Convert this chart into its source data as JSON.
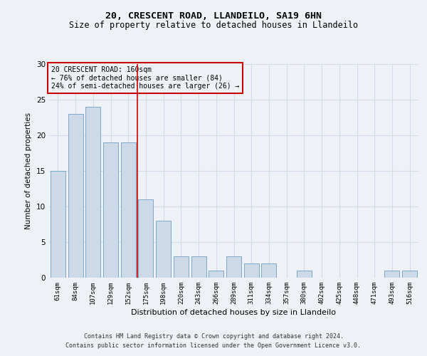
{
  "title1": "20, CRESCENT ROAD, LLANDEILO, SA19 6HN",
  "title2": "Size of property relative to detached houses in Llandeilo",
  "xlabel": "Distribution of detached houses by size in Llandeilo",
  "ylabel": "Number of detached properties",
  "categories": [
    "61sqm",
    "84sqm",
    "107sqm",
    "129sqm",
    "152sqm",
    "175sqm",
    "198sqm",
    "220sqm",
    "243sqm",
    "266sqm",
    "289sqm",
    "311sqm",
    "334sqm",
    "357sqm",
    "380sqm",
    "402sqm",
    "425sqm",
    "448sqm",
    "471sqm",
    "493sqm",
    "516sqm"
  ],
  "values": [
    15,
    23,
    24,
    19,
    19,
    11,
    8,
    3,
    3,
    1,
    3,
    2,
    2,
    0,
    1,
    0,
    0,
    0,
    0,
    1,
    1
  ],
  "bar_color": "#ccd9e8",
  "bar_edge_color": "#7aaac8",
  "grid_color": "#d0dde8",
  "annotation_box_color": "#cc0000",
  "vline_color": "#cc0000",
  "annotation_text": "20 CRESCENT ROAD: 160sqm\n← 76% of detached houses are smaller (84)\n24% of semi-detached houses are larger (26) →",
  "footer1": "Contains HM Land Registry data © Crown copyright and database right 2024.",
  "footer2": "Contains public sector information licensed under the Open Government Licence v3.0.",
  "ylim": [
    0,
    30
  ],
  "background_color": "#eef2f7"
}
